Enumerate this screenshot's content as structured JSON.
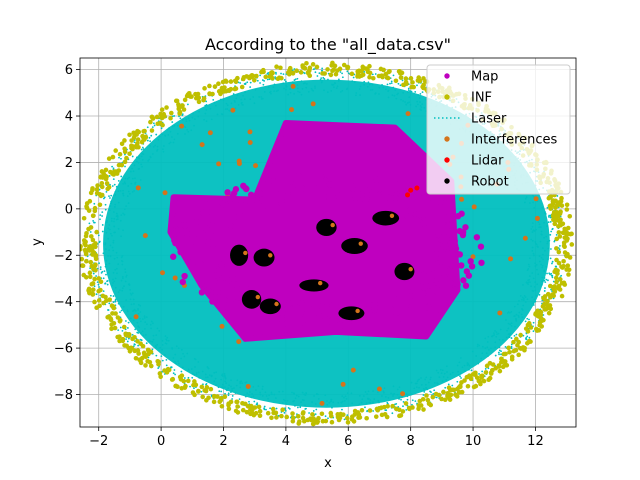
{
  "chart_data": {
    "type": "scatter",
    "title": "According to the \"all_data.csv\"",
    "xlabel": "x",
    "ylabel": "y",
    "xlim": [
      -2.6,
      13.3
    ],
    "ylim": [
      -9.4,
      6.5
    ],
    "xticks": [
      -2,
      0,
      2,
      4,
      6,
      8,
      10,
      12
    ],
    "yticks": [
      -8,
      -6,
      -4,
      -2,
      0,
      2,
      4,
      6
    ],
    "xtick_labels": [
      "−2",
      "0",
      "2",
      "4",
      "6",
      "8",
      "10",
      "12"
    ],
    "ytick_labels": [
      "−8",
      "−6",
      "−4",
      "−2",
      "0",
      "2",
      "4",
      "6"
    ],
    "grid": true,
    "legend_position": "top-right",
    "series": [
      {
        "name": "Map",
        "color": "#bf00bf",
        "marker": "dot",
        "region": {
          "cx": 5.3,
          "cy": -1.8,
          "rx": 4.6,
          "ry": 3.0
        }
      },
      {
        "name": "INF",
        "color": "#bfbf00",
        "marker": "dot",
        "region": {
          "cx": 5.3,
          "cy": -1.5,
          "rx": 7.9,
          "ry": 7.8
        }
      },
      {
        "name": "Laser",
        "color": "#00bfbf",
        "marker": "dotted-line",
        "region": {
          "cx": 5.3,
          "cy": -1.5,
          "rx": 7.7,
          "ry": 7.6
        }
      },
      {
        "name": "Interferences",
        "color": "#d4741c",
        "marker": "dot",
        "region": {
          "cx": 5.3,
          "cy": -1.5,
          "rx": 7.0,
          "ry": 7.0
        }
      },
      {
        "name": "Lidar",
        "color": "#ff0000",
        "marker": "dot",
        "points": [
          [
            8.0,
            0.8
          ],
          [
            8.2,
            0.9
          ],
          [
            7.9,
            0.6
          ]
        ]
      },
      {
        "name": "Robot",
        "color": "#000000",
        "marker": "dot",
        "points": [
          [
            2.5,
            -2.0
          ],
          [
            3.5,
            -4.2
          ],
          [
            5.3,
            -0.8
          ],
          [
            7.2,
            -0.4
          ],
          [
            6.1,
            -4.5
          ],
          [
            4.9,
            -3.3
          ],
          [
            3.3,
            -2.1
          ],
          [
            7.8,
            -2.7
          ],
          [
            6.2,
            -1.6
          ],
          [
            2.9,
            -3.9
          ]
        ]
      }
    ]
  }
}
